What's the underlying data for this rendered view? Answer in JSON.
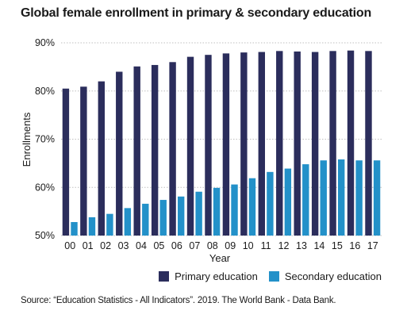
{
  "colors": {
    "primary": "#2b2d5c",
    "secondary": "#2391c9",
    "grid": "#bfbfbf",
    "text": "#1a1a1a"
  },
  "source": "Source: “Education Statistics - All Indicators”. 2019. The World Bank - Data Bank.",
  "chart_data": {
    "type": "bar",
    "title": "Global female enrollment in primary & secondary education",
    "xlabel": "Year",
    "ylabel": "Enrollments",
    "ylim": [
      50,
      90
    ],
    "yticks": [
      "50%",
      "60%",
      "70%",
      "80%",
      "90%"
    ],
    "grid": "horizontal dotted",
    "legend_position": "bottom-right",
    "categories": [
      "00",
      "01",
      "02",
      "03",
      "04",
      "05",
      "06",
      "07",
      "08",
      "09",
      "10",
      "11",
      "12",
      "13",
      "14",
      "15",
      "16",
      "17"
    ],
    "series": [
      {
        "name": "Primary education",
        "values": [
          80.5,
          80.9,
          82.0,
          84.0,
          85.1,
          85.4,
          86.0,
          87.1,
          87.5,
          87.8,
          88.0,
          88.1,
          88.3,
          88.2,
          88.1,
          88.3,
          88.4,
          88.3
        ]
      },
      {
        "name": "Secondary education",
        "values": [
          52.8,
          53.8,
          54.5,
          55.7,
          56.6,
          57.4,
          58.1,
          59.1,
          59.9,
          60.6,
          61.9,
          63.2,
          63.9,
          64.8,
          65.6,
          65.8,
          65.6,
          65.6
        ]
      }
    ]
  }
}
